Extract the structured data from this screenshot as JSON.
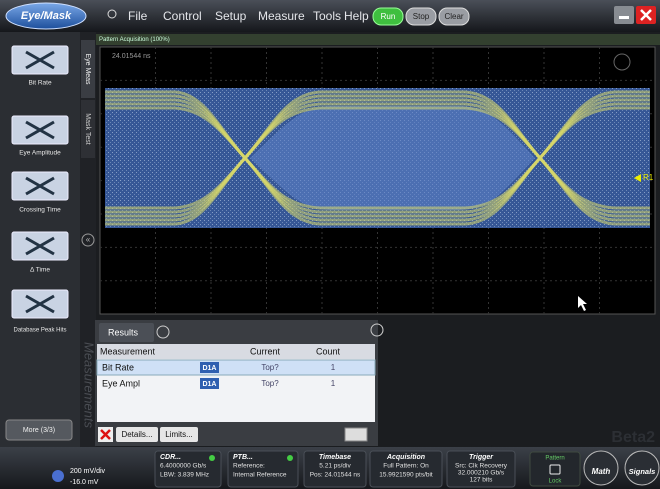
{
  "app": {
    "title": "Eye/Mask"
  },
  "menu": [
    "File",
    "Control",
    "Setup",
    "Measure",
    "Tools",
    "Help"
  ],
  "controls": [
    "Run",
    "Stop",
    "Clear"
  ],
  "status_strip": "Pattern Acquisition (100%)",
  "sidebar": {
    "buttons": [
      "Bit Rate",
      "Eye Amplitude",
      "Crossing Time",
      "Δ Time",
      "Database Peak Hits"
    ],
    "more": "More (3/3)"
  },
  "tabs": [
    "Eye Meas",
    "Mask Test"
  ],
  "watermark_tab": "Measurements",
  "display": {
    "position": "24.01544 ns",
    "marker": "R1"
  },
  "results": {
    "title": "Results",
    "columns": [
      "Measurement",
      "Current",
      "Count"
    ],
    "rows": [
      {
        "name": "Bit Rate",
        "source": "D1A",
        "current": "Top?",
        "count": 1
      },
      {
        "name": "Eye Ampl",
        "source": "D1A",
        "current": "Top?",
        "count": 1
      }
    ],
    "buttons": [
      "Details...",
      "Limits..."
    ]
  },
  "bottom": {
    "channel": [
      "200 mV/div",
      "-16.0 mV"
    ],
    "cdr": {
      "title": "CDR...",
      "lines": [
        "6.4000000 Gb/s",
        "LBW: 3.839 MHz"
      ]
    },
    "ptb": {
      "title": "PTB...",
      "lines": [
        "Reference:",
        "Internal Reference"
      ]
    },
    "timebase": {
      "title": "Timebase",
      "lines": [
        "5.21 ps/div",
        "Pos: 24.01544 ns"
      ]
    },
    "acquisition": {
      "title": "Acquisition",
      "lines": [
        "Full Pattern: On",
        "15.9921590 pts/bit"
      ]
    },
    "trigger": {
      "title": "Trigger",
      "lines": [
        "Src: Clk Recovery",
        "32.000210 Gb/s",
        "127 bits"
      ]
    },
    "pattern": {
      "title": "Pattern",
      "status": "Lock"
    },
    "buttons": [
      "Math",
      "Signals"
    ]
  },
  "watermark": "Beta2"
}
